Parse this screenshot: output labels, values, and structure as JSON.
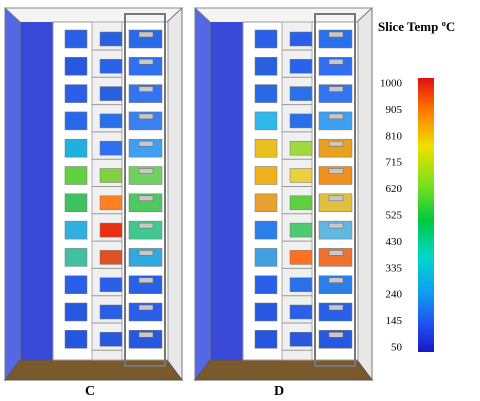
{
  "colorbar": {
    "title": "Slice Temp ºC",
    "ticks": [
      "1000",
      "905",
      "810",
      "715",
      "620",
      "525",
      "430",
      "335",
      "240",
      "145",
      "50"
    ]
  },
  "panels": [
    {
      "label": "C"
    },
    {
      "label": "D"
    }
  ]
}
